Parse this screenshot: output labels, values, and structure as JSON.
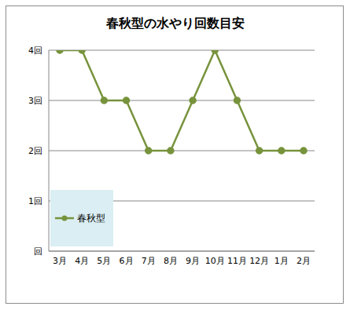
{
  "chart_data": {
    "type": "line",
    "title": "春秋型の水やり回数目安",
    "categories": [
      "3月",
      "4月",
      "5月",
      "6月",
      "7月",
      "8月",
      "9月",
      "10月",
      "11月",
      "12月",
      "1月",
      "2月"
    ],
    "series": [
      {
        "name": "春秋型",
        "color": "#77933c",
        "values": [
          4,
          4,
          3,
          3,
          2,
          2,
          3,
          4,
          3,
          2,
          2,
          2
        ]
      }
    ],
    "ylim": [
      0,
      4
    ],
    "yticks": [
      {
        "value": 0,
        "label": "回"
      },
      {
        "value": 1,
        "label": "1回"
      },
      {
        "value": 2,
        "label": "2回"
      },
      {
        "value": 3,
        "label": "3回"
      },
      {
        "value": 4,
        "label": "4回"
      }
    ],
    "grid": true,
    "legend": "lower left",
    "marker": "circle"
  }
}
